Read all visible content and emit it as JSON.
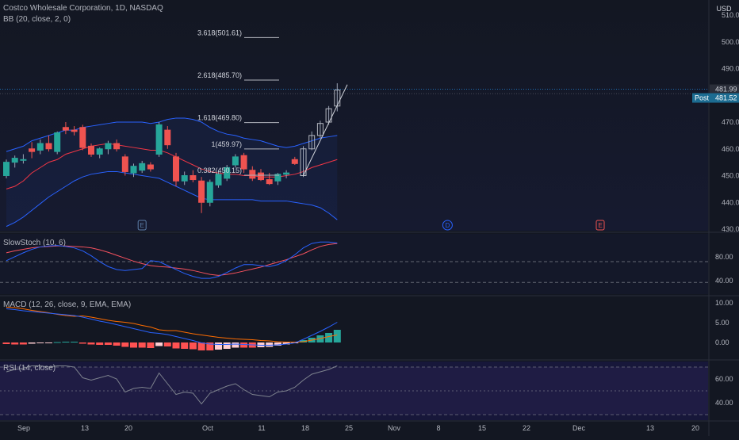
{
  "header": {
    "symbol_line": "Costco Wholesale Corporation, 1D, NASDAQ",
    "bb_line": "BB (20, close, 2, 0)",
    "currency": "USD"
  },
  "colors": {
    "up": "#26a69a",
    "down": "#ef5350",
    "bb_basis": "#f23645",
    "bb_band": "#2962ff",
    "stoch_k": "#2962ff",
    "stoch_d": "#f7525f",
    "macd_line": "#2962ff",
    "macd_signal": "#ff6d00",
    "rsi_line": "#7e838e",
    "price_tag": "#2a2e39",
    "post_tag": "#2196f3"
  },
  "price_badges": {
    "last": "481.99",
    "post_label": "Post",
    "post": "481.52"
  },
  "chart_data": [
    {
      "type": "candlestick",
      "title": "Costco Wholesale Corporation, 1D, NASDAQ",
      "ylim": [
        430,
        515
      ],
      "y_ticks": [
        "510.00",
        "500.00",
        "490.00",
        "480.00",
        "470.00",
        "460.00",
        "450.00",
        "440.00",
        "430.00"
      ],
      "y_tick_values": [
        510,
        500,
        490,
        480,
        470,
        460,
        450,
        440,
        430
      ],
      "x_ticks": [
        "Sep",
        "13",
        "20",
        "Oct",
        "11",
        "18",
        "25",
        "Nov",
        "8",
        "15",
        "22",
        "Dec",
        "13",
        "20"
      ],
      "candles": [
        {
          "o": 450.0,
          "h": 456.0,
          "l": 449.0,
          "c": 455.0
        },
        {
          "o": 455.0,
          "h": 457.5,
          "l": 453.0,
          "c": 456.5
        },
        {
          "o": 456.0,
          "h": 458.0,
          "l": 454.5,
          "c": 456.0
        },
        {
          "o": 460.0,
          "h": 462.5,
          "l": 456.5,
          "c": 459.0
        },
        {
          "o": 459.5,
          "h": 463.5,
          "l": 458.0,
          "c": 462.0
        },
        {
          "o": 462.0,
          "h": 465.0,
          "l": 459.0,
          "c": 460.0
        },
        {
          "o": 459.0,
          "h": 466.5,
          "l": 458.0,
          "c": 466.0
        },
        {
          "o": 468.0,
          "h": 470.0,
          "l": 465.5,
          "c": 467.0
        },
        {
          "o": 467.0,
          "h": 468.5,
          "l": 465.0,
          "c": 466.5
        },
        {
          "o": 468.0,
          "h": 469.0,
          "l": 459.5,
          "c": 460.5
        },
        {
          "o": 461.0,
          "h": 462.0,
          "l": 457.0,
          "c": 458.0
        },
        {
          "o": 458.0,
          "h": 460.5,
          "l": 456.5,
          "c": 460.0
        },
        {
          "o": 460.0,
          "h": 463.0,
          "l": 458.0,
          "c": 462.0
        },
        {
          "o": 462.0,
          "h": 463.5,
          "l": 459.0,
          "c": 460.0
        },
        {
          "o": 457.0,
          "h": 458.0,
          "l": 450.0,
          "c": 451.5
        },
        {
          "o": 451.0,
          "h": 454.5,
          "l": 449.5,
          "c": 453.5
        },
        {
          "o": 452.0,
          "h": 455.5,
          "l": 451.0,
          "c": 454.5
        },
        {
          "o": 454.0,
          "h": 455.0,
          "l": 451.5,
          "c": 452.5
        },
        {
          "o": 458.0,
          "h": 470.0,
          "l": 457.0,
          "c": 469.0
        },
        {
          "o": 467.0,
          "h": 468.5,
          "l": 460.0,
          "c": 461.5
        },
        {
          "o": 457.0,
          "h": 458.5,
          "l": 446.0,
          "c": 448.0
        },
        {
          "o": 448.0,
          "h": 451.5,
          "l": 446.5,
          "c": 450.0
        },
        {
          "o": 450.0,
          "h": 452.0,
          "l": 447.5,
          "c": 448.5
        },
        {
          "o": 448.0,
          "h": 449.5,
          "l": 436.0,
          "c": 440.0
        },
        {
          "o": 440.0,
          "h": 448.5,
          "l": 438.5,
          "c": 447.5
        },
        {
          "o": 446.5,
          "h": 452.0,
          "l": 445.5,
          "c": 450.5
        },
        {
          "o": 449.0,
          "h": 454.0,
          "l": 448.0,
          "c": 453.0
        },
        {
          "o": 454.0,
          "h": 458.0,
          "l": 453.0,
          "c": 457.0
        },
        {
          "o": 457.5,
          "h": 458.5,
          "l": 451.0,
          "c": 452.5
        },
        {
          "o": 452.0,
          "h": 453.5,
          "l": 448.0,
          "c": 449.0
        },
        {
          "o": 451.0,
          "h": 452.5,
          "l": 448.0,
          "c": 448.5
        },
        {
          "o": 448.5,
          "h": 451.0,
          "l": 446.5,
          "c": 447.0
        },
        {
          "o": 448.0,
          "h": 451.0,
          "l": 446.5,
          "c": 450.5
        },
        {
          "o": 450.5,
          "h": 452.0,
          "l": 449.0,
          "c": 451.0
        },
        {
          "o": 456.0,
          "h": 457.0,
          "l": 454.0,
          "c": 454.5
        },
        {
          "o": 450.0,
          "h": 461.0,
          "l": 449.5,
          "c": 460.0
        },
        {
          "o": 460.0,
          "h": 466.5,
          "l": 459.5,
          "c": 465.0
        },
        {
          "o": 465.0,
          "h": 470.5,
          "l": 464.0,
          "c": 469.5
        },
        {
          "o": 470.0,
          "h": 476.0,
          "l": 469.0,
          "c": 475.0
        },
        {
          "o": 476.0,
          "h": 484.5,
          "l": 474.0,
          "c": 481.99
        }
      ],
      "bb_basis": [
        445,
        446,
        448,
        451,
        453,
        455,
        456,
        458,
        459,
        460,
        461,
        461.5,
        462,
        461.5,
        461,
        460.5,
        460,
        459.5,
        459.5,
        458.5,
        457,
        455.5,
        454,
        452.5,
        451.5,
        451,
        450.5,
        450.5,
        450,
        450,
        449.5,
        449.5,
        449.5,
        450,
        450.5,
        451.5,
        453,
        454,
        455,
        456
      ],
      "bb_upper": [
        459,
        460,
        461,
        463,
        464,
        465,
        466,
        467,
        467,
        468,
        468.5,
        469,
        469.5,
        470,
        470,
        470,
        470,
        469.5,
        470,
        471,
        471.5,
        471.5,
        471,
        470,
        468,
        466.5,
        465.5,
        465,
        464,
        463.5,
        463,
        462,
        461,
        460.5,
        461,
        462,
        463,
        464,
        464.5,
        465
      ],
      "bb_lower": [
        431,
        432.5,
        434.5,
        437,
        439.5,
        442,
        444,
        446,
        448,
        449.5,
        450.5,
        451,
        451.5,
        451.5,
        451,
        450.5,
        450,
        449.5,
        449,
        447.5,
        446,
        444.5,
        443,
        441.5,
        441,
        441,
        441,
        441,
        441,
        441,
        440.5,
        440.5,
        440.5,
        440.5,
        440,
        439.5,
        439,
        438,
        436,
        433.5
      ],
      "fib_levels": [
        {
          "label": "3.618(501.61)",
          "value": 501.61
        },
        {
          "label": "2.618(485.70)",
          "value": 485.7
        },
        {
          "label": "1.618(469.80)",
          "value": 469.8
        },
        {
          "label": "1(459.97)",
          "value": 459.97
        },
        {
          "label": "0.382(450.15)",
          "value": 450.15
        }
      ],
      "fib_anchor": {
        "from_bar": 35,
        "to_bar": 40,
        "from_value": 450.0,
        "to_value": 484.0
      },
      "event_markers": [
        {
          "label": "E",
          "bar": 16
        },
        {
          "label": "D",
          "bar": 52
        },
        {
          "label": "E",
          "bar": 70
        }
      ]
    },
    {
      "type": "line",
      "title": "SlowStoch (10, 6)",
      "ylim": [
        0,
        100
      ],
      "y_ticks": [
        "80.00",
        "40.00"
      ],
      "y_tick_values": [
        80,
        40
      ],
      "bands": [
        80,
        20
      ],
      "series": [
        {
          "values": [
            76,
            80,
            83,
            86,
            88,
            89,
            90,
            90,
            89,
            88,
            86,
            82,
            77,
            71,
            65,
            59,
            54,
            50,
            48,
            47,
            45,
            43,
            40,
            36,
            32,
            30,
            32,
            35,
            39,
            43,
            47,
            52,
            57,
            62,
            68,
            74,
            82,
            89,
            93,
            95
          ]
        },
        {
          "values": [
            60,
            68,
            76,
            83,
            88,
            90,
            91,
            89,
            86,
            80,
            70,
            58,
            48,
            42,
            40,
            42,
            44,
            60,
            58,
            50,
            42,
            34,
            28,
            24,
            24,
            28,
            36,
            45,
            52,
            52,
            50,
            48,
            52,
            60,
            72,
            86,
            95,
            98,
            98,
            96
          ]
        }
      ]
    },
    {
      "type": "bar+line",
      "title": "MACD (12, 26, close, 9, EMA, EMA)",
      "ylim": [
        -3,
        12
      ],
      "y_ticks": [
        "10.00",
        "5.00",
        "0.00"
      ],
      "y_tick_values": [
        10,
        5,
        0
      ],
      "histogram": [
        -0.4,
        -0.5,
        -0.5,
        -0.3,
        -0.2,
        -0.1,
        0.1,
        0.2,
        0.2,
        -0.3,
        -0.5,
        -0.6,
        -0.6,
        -0.8,
        -1.1,
        -1.3,
        -1.3,
        -1.4,
        -0.9,
        -1.0,
        -1.5,
        -1.6,
        -1.7,
        -2.0,
        -2.0,
        -1.8,
        -1.6,
        -1.3,
        -1.3,
        -1.3,
        -1.2,
        -1.1,
        -0.8,
        -0.5,
        -0.2,
        0.6,
        1.2,
        1.8,
        2.4,
        3.2
      ],
      "series": [
        {
          "values": [
            8.5,
            8.3,
            8.0,
            7.8,
            7.6,
            7.4,
            7.2,
            7.0,
            6.8,
            6.4,
            5.9,
            5.4,
            5.0,
            4.5,
            4.0,
            3.5,
            3.0,
            2.5,
            2.3,
            2.0,
            1.5,
            1.0,
            0.5,
            -0.1,
            -0.4,
            -0.5,
            -0.5,
            -0.4,
            -0.5,
            -0.6,
            -0.7,
            -0.7,
            -0.6,
            -0.4,
            -0.1,
            0.8,
            1.8,
            2.8,
            3.9,
            5.1
          ]
        },
        {
          "values": [
            8.9,
            8.8,
            8.5,
            8.1,
            7.8,
            7.5,
            7.1,
            6.8,
            6.6,
            6.7,
            6.4,
            6.0,
            5.6,
            5.3,
            5.1,
            4.8,
            4.3,
            3.9,
            3.2,
            3.0,
            3.0,
            2.6,
            2.2,
            1.9,
            1.6,
            1.3,
            1.1,
            0.9,
            0.8,
            0.7,
            0.5,
            0.4,
            0.2,
            0.1,
            0.1,
            0.2,
            0.6,
            1.0,
            1.5,
            1.9
          ]
        }
      ]
    },
    {
      "type": "line",
      "title": "RSI (14, close)",
      "ylim": [
        25,
        75
      ],
      "y_ticks": [
        "60.00",
        "40.00"
      ],
      "y_tick_values": [
        60,
        40
      ],
      "bands": [
        70,
        50,
        30
      ],
      "series": [
        {
          "values": [
            66,
            68,
            69,
            71,
            71,
            70,
            71,
            71,
            70,
            61,
            59,
            61,
            63,
            60,
            49,
            52,
            53,
            52,
            65,
            56,
            47,
            49,
            48,
            39,
            48,
            51,
            54,
            56,
            51,
            47,
            46,
            45,
            49,
            50,
            53,
            59,
            64,
            66,
            68,
            71
          ]
        }
      ]
    }
  ]
}
